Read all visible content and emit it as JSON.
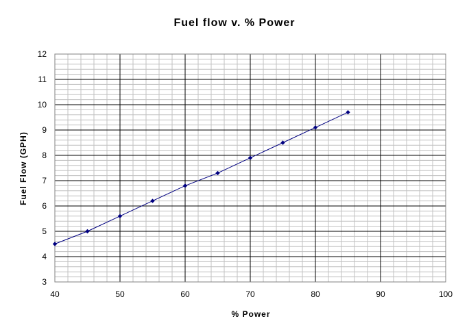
{
  "chart_data": {
    "type": "line",
    "title": "Fuel flow v. % Power",
    "xlabel": "% Power",
    "ylabel": "Fuel Flow (GPH)",
    "xlim": [
      40,
      100
    ],
    "ylim": [
      3,
      12
    ],
    "x_ticks": [
      "40",
      "50",
      "60",
      "70",
      "80",
      "90",
      "100"
    ],
    "y_ticks": [
      "3",
      "4",
      "5",
      "6",
      "7",
      "8",
      "9",
      "10",
      "11",
      "12"
    ],
    "grid": true,
    "legend": "none",
    "series": [
      {
        "color": "#000080",
        "x": [
          40,
          45,
          50,
          55,
          60,
          65,
          70,
          75,
          80,
          85
        ],
        "y": [
          4.5,
          5.0,
          5.6,
          6.2,
          6.8,
          7.3,
          7.9,
          8.5,
          9.1,
          9.7
        ]
      }
    ]
  }
}
